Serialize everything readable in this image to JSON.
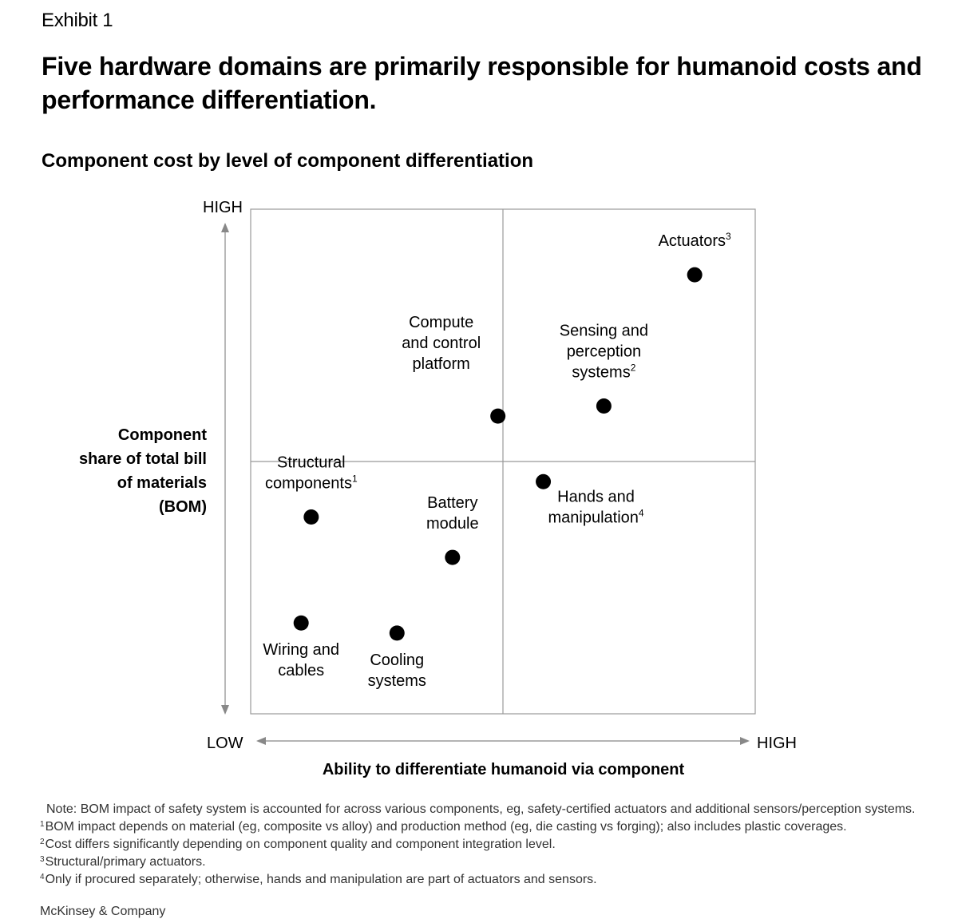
{
  "header": {
    "exhibit": "Exhibit 1",
    "title": "Five hardware domains are primarily responsible for humanoid costs and performance differentiation."
  },
  "chart_data": {
    "type": "scatter",
    "title": "Component cost by level of component differentiation",
    "xlabel": "Ability to differentiate humanoid via component",
    "ylabel_lines": [
      "Component",
      "share of total bill",
      "of materials",
      "(BOM)"
    ],
    "x_axis": {
      "low": "LOW",
      "high": "HIGH"
    },
    "y_axis": {
      "low": "LOW",
      "high": "HIGH"
    },
    "xlim": [
      0,
      100
    ],
    "ylim": [
      0,
      100
    ],
    "quadrant_divider": {
      "x": 50,
      "y": 50
    },
    "points": [
      {
        "name": "actuators",
        "label_lines": [
          "Actuators"
        ],
        "sup": "3",
        "x": 88,
        "y": 87,
        "label_pos": "above"
      },
      {
        "name": "sensing-and-perception",
        "label_lines": [
          "Sensing and",
          "perception",
          "systems"
        ],
        "sup": "2",
        "x": 70,
        "y": 61,
        "label_pos": "above"
      },
      {
        "name": "compute-and-control",
        "label_lines": [
          "Compute",
          "and control",
          "platform"
        ],
        "sup": "",
        "x": 49,
        "y": 59,
        "label_pos": "above-left"
      },
      {
        "name": "structural-components",
        "label_lines": [
          "Structural",
          "components"
        ],
        "sup": "1",
        "x": 12,
        "y": 39,
        "label_pos": "above"
      },
      {
        "name": "hands-and-manipulation",
        "label_lines": [
          "Hands and",
          "manipulation"
        ],
        "sup": "4",
        "x": 58,
        "y": 46,
        "label_pos": "below-right"
      },
      {
        "name": "battery-module",
        "label_lines": [
          "Battery",
          "module"
        ],
        "sup": "",
        "x": 40,
        "y": 31,
        "label_pos": "above"
      },
      {
        "name": "wiring-and-cables",
        "label_lines": [
          "Wiring and",
          "cables"
        ],
        "sup": "",
        "x": 10,
        "y": 18,
        "label_pos": "below"
      },
      {
        "name": "cooling-systems",
        "label_lines": [
          "Cooling",
          "systems"
        ],
        "sup": "",
        "x": 29,
        "y": 16,
        "label_pos": "below"
      }
    ]
  },
  "notes": {
    "note": "Note: BOM impact of safety system is accounted for across various components, eg, safety-certified actuators and additional sensors/perception systems.",
    "footnotes": [
      {
        "num": "1",
        "text": "BOM impact depends on material (eg, composite vs alloy) and production method (eg, die casting vs forging); also includes plastic coverages."
      },
      {
        "num": "2",
        "text": "Cost differs significantly depending on component quality and component integration level."
      },
      {
        "num": "3",
        "text": "Structural/primary actuators."
      },
      {
        "num": "4",
        "text": "Only if procured separately; otherwise, hands and manipulation are part of actuators and sensors."
      }
    ]
  },
  "source": "McKinsey & Company"
}
